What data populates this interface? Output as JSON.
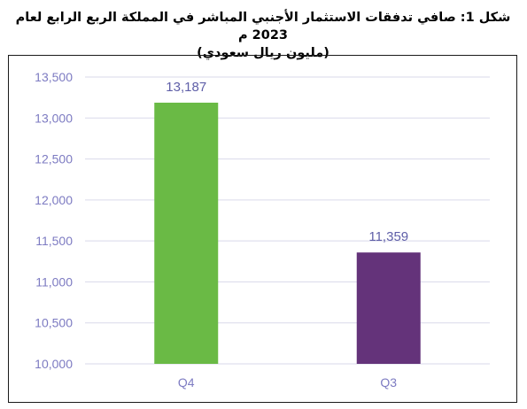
{
  "title_line1": "شكل 1: صافي تدفقات الاستثمار الأجنبي المباشر في المملكة الربع الرابع لعام 2023 م",
  "title_line2": "(مليون ريال سعودي)",
  "colors": {
    "axis_text": "#7d7bc2",
    "grid": "#d9d9ea",
    "data_label": "#5f5fa8",
    "q4_bar": "#6aba45",
    "q3_bar": "#64337a"
  },
  "chart_data": {
    "type": "bar",
    "title": "شكل 1: صافي تدفقات الاستثمار الأجنبي المباشر في المملكة الربع الرابع لعام 2023 م (مليون ريال سعودي)",
    "categories": [
      "Q4",
      "Q3"
    ],
    "values": [
      13187,
      11359
    ],
    "value_labels": [
      "13,187",
      "11,359"
    ],
    "ylim": [
      10000,
      13500
    ],
    "yticks": [
      10000,
      10500,
      11000,
      11500,
      12000,
      12500,
      13000,
      13500
    ],
    "ytick_labels": [
      "10,000",
      "10,500",
      "11,000",
      "11,500",
      "12,000",
      "12,500",
      "13,000",
      "13,500"
    ],
    "grid": true,
    "legend": "none",
    "xlabel": "",
    "ylabel": ""
  }
}
